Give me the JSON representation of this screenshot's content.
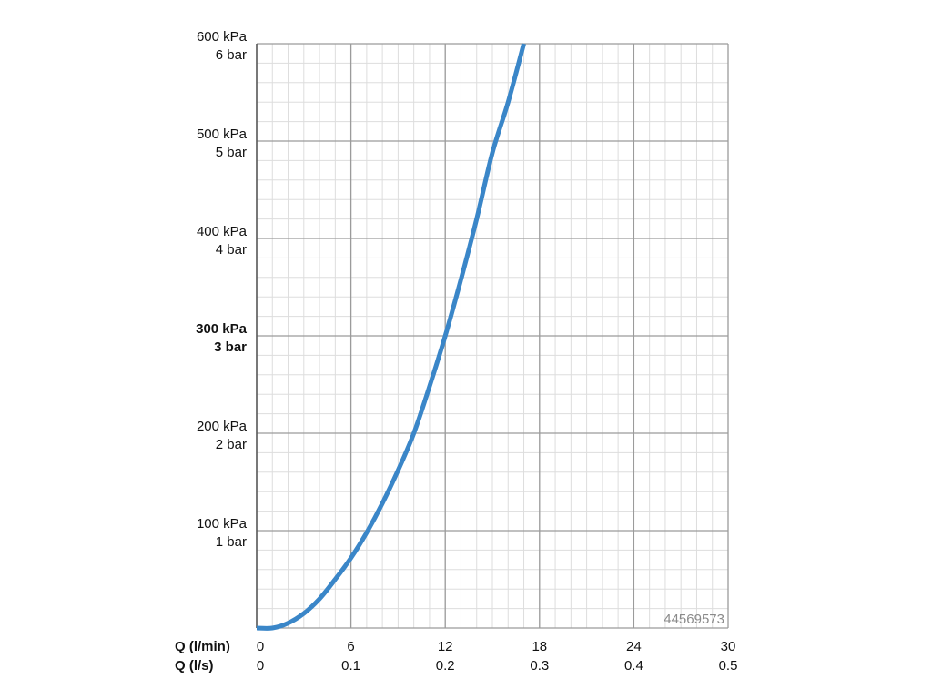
{
  "chart_data": {
    "type": "line",
    "x_primary": {
      "name": "Q (l/min)",
      "ticks": [
        "0",
        "6",
        "12",
        "18",
        "24",
        "30"
      ],
      "range": [
        0,
        30
      ]
    },
    "x_secondary": {
      "name": "Q (l/s)",
      "ticks": [
        "0",
        "0.1",
        "0.2",
        "0.3",
        "0.4",
        "0.5"
      ]
    },
    "y": {
      "range": [
        0,
        600
      ],
      "unit": "kPa",
      "ticks": [
        {
          "value": 100,
          "kpa": "100 kPa",
          "bar": "1 bar",
          "bold": false
        },
        {
          "value": 200,
          "kpa": "200 kPa",
          "bar": "2 bar",
          "bold": false
        },
        {
          "value": 300,
          "kpa": "300 kPa",
          "bar": "3 bar",
          "bold": true
        },
        {
          "value": 400,
          "kpa": "400 kPa",
          "bar": "4 bar",
          "bold": false
        },
        {
          "value": 500,
          "kpa": "500 kPa",
          "bar": "5 bar",
          "bold": false
        },
        {
          "value": 600,
          "kpa": "600 kPa",
          "bar": "6 bar",
          "bold": false
        }
      ]
    },
    "grid": true,
    "series": [
      {
        "color": "#3a86c8",
        "points": [
          [
            0,
            0
          ],
          [
            1,
            0
          ],
          [
            2,
            5
          ],
          [
            3,
            15
          ],
          [
            4,
            30
          ],
          [
            5,
            50
          ],
          [
            6,
            72
          ],
          [
            7,
            98
          ],
          [
            8,
            128
          ],
          [
            9,
            162
          ],
          [
            10,
            200
          ],
          [
            11,
            248
          ],
          [
            12,
            300
          ],
          [
            13,
            358
          ],
          [
            14,
            420
          ],
          [
            15,
            488
          ],
          [
            16,
            540
          ],
          [
            17,
            600
          ]
        ]
      }
    ],
    "annotation": "44569573"
  }
}
